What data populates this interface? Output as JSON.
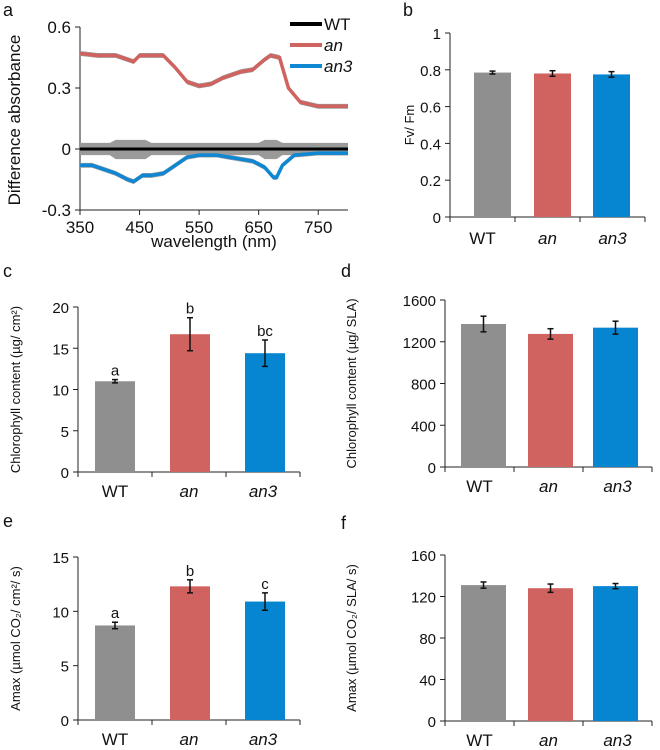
{
  "chart_data": [
    {
      "panel": "a",
      "type": "line",
      "xlabel": "wavelength (nm)",
      "ylabel": "Difference absorbance",
      "xlim": [
        350,
        800
      ],
      "ylim": [
        -0.3,
        0.6
      ],
      "xticks": [
        350,
        450,
        550,
        650,
        750
      ],
      "yticks": [
        -0.3,
        0,
        0.3,
        0.6
      ],
      "yticklabels": [
        "-0.3",
        "0",
        "0.3",
        "0.6"
      ],
      "legend_placement": "top-right",
      "series": [
        {
          "name": "WT",
          "color": "#000000",
          "band": 0.03,
          "points": [
            [
              350,
              0
            ],
            [
              800,
              0
            ]
          ]
        },
        {
          "name": "an",
          "color": "#d0625f",
          "band": 0.012,
          "points": [
            [
              350,
              0.47
            ],
            [
              380,
              0.46
            ],
            [
              410,
              0.46
            ],
            [
              430,
              0.44
            ],
            [
              440,
              0.43
            ],
            [
              450,
              0.46
            ],
            [
              490,
              0.46
            ],
            [
              510,
              0.4
            ],
            [
              530,
              0.33
            ],
            [
              550,
              0.31
            ],
            [
              570,
              0.32
            ],
            [
              590,
              0.35
            ],
            [
              620,
              0.38
            ],
            [
              640,
              0.39
            ],
            [
              660,
              0.44
            ],
            [
              670,
              0.46
            ],
            [
              685,
              0.45
            ],
            [
              700,
              0.3
            ],
            [
              720,
              0.23
            ],
            [
              750,
              0.21
            ],
            [
              800,
              0.21
            ]
          ]
        },
        {
          "name": "an3",
          "color": "#0f87d2",
          "band": 0.012,
          "points": [
            [
              350,
              -0.08
            ],
            [
              370,
              -0.08
            ],
            [
              390,
              -0.1
            ],
            [
              410,
              -0.12
            ],
            [
              430,
              -0.15
            ],
            [
              440,
              -0.16
            ],
            [
              455,
              -0.13
            ],
            [
              470,
              -0.13
            ],
            [
              490,
              -0.12
            ],
            [
              510,
              -0.08
            ],
            [
              530,
              -0.04
            ],
            [
              550,
              -0.03
            ],
            [
              580,
              -0.03
            ],
            [
              600,
              -0.04
            ],
            [
              640,
              -0.06
            ],
            [
              660,
              -0.09
            ],
            [
              675,
              -0.14
            ],
            [
              680,
              -0.14
            ],
            [
              690,
              -0.08
            ],
            [
              710,
              -0.03
            ],
            [
              750,
              -0.02
            ],
            [
              800,
              -0.02
            ]
          ]
        }
      ]
    },
    {
      "panel": "b",
      "type": "bar",
      "ylabel": "Fv/ Fm",
      "ylim": [
        0,
        1
      ],
      "yticks": [
        0,
        0.2,
        0.4,
        0.6,
        0.8,
        1
      ],
      "yticklabels": [
        "0",
        "0.2",
        "0.4",
        "0.6",
        "0.8",
        "1"
      ],
      "categories": [
        "WT",
        "an",
        "an3"
      ],
      "values": [
        0.785,
        0.78,
        0.775
      ],
      "errors": [
        0.008,
        0.015,
        0.015
      ],
      "letters": []
    },
    {
      "panel": "c",
      "type": "bar",
      "ylabel": "Chlorophyll content (µg/ cm²)",
      "ylim": [
        0,
        20
      ],
      "yticks": [
        0,
        5,
        10,
        15,
        20
      ],
      "yticklabels": [
        "0",
        "5",
        "10",
        "15",
        "20"
      ],
      "categories": [
        "WT",
        "an",
        "an3"
      ],
      "values": [
        11.0,
        16.7,
        14.4
      ],
      "errors": [
        0.2,
        2.0,
        1.6
      ],
      "letters": [
        "a",
        "b",
        "bc"
      ]
    },
    {
      "panel": "d",
      "type": "bar",
      "ylabel": "Chlorophyll content (µg/ SLA)",
      "ylim": [
        0,
        1600
      ],
      "yticks": [
        0,
        400,
        800,
        1200,
        1600
      ],
      "yticklabels": [
        "0",
        "400",
        "800",
        "1200",
        "1600"
      ],
      "categories": [
        "WT",
        "an",
        "an3"
      ],
      "values": [
        1370,
        1275,
        1335
      ],
      "errors": [
        75,
        50,
        62
      ],
      "letters": []
    },
    {
      "panel": "e",
      "type": "bar",
      "ylabel": "Amax (µmol CO₂/ cm²/ s)",
      "ylim": [
        0,
        15
      ],
      "yticks": [
        0,
        5,
        10,
        15
      ],
      "yticklabels": [
        "0",
        "5",
        "10",
        "15"
      ],
      "categories": [
        "WT",
        "an",
        "an3"
      ],
      "values": [
        8.7,
        12.3,
        10.9
      ],
      "errors": [
        0.3,
        0.6,
        0.8
      ],
      "letters": [
        "a",
        "b",
        "c"
      ]
    },
    {
      "panel": "f",
      "type": "bar",
      "ylabel": "Amax (µmol CO₂/ SLA/ s)",
      "ylim": [
        0,
        160
      ],
      "yticks": [
        0,
        40,
        80,
        120,
        160
      ],
      "yticklabels": [
        "0",
        "40",
        "80",
        "120",
        "160"
      ],
      "categories": [
        "WT",
        "an",
        "an3"
      ],
      "values": [
        131,
        128,
        130
      ],
      "errors": [
        3,
        4,
        2.5
      ],
      "letters": []
    }
  ],
  "colors": {
    "WT": "#8f8f8f",
    "an": "#d0625f",
    "an3": "#0686d1",
    "band": "#9a9a9a"
  }
}
